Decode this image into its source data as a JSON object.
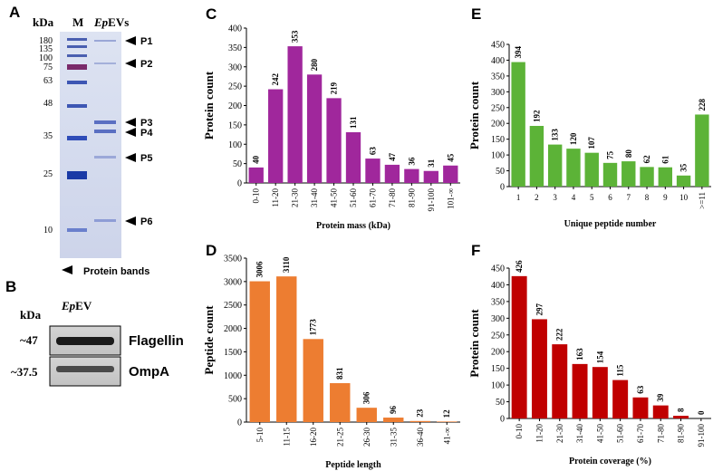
{
  "panels": {
    "A": {
      "letter": "A",
      "kda_label": "kDa",
      "marker_label": "M",
      "sample_label_italic": "Ep",
      "sample_label_rest": "EVs",
      "marker_ticks": [
        "180",
        "135",
        "100",
        "75",
        "63",
        "48",
        "35",
        "25",
        "10"
      ],
      "band_labels": [
        "P1",
        "P2",
        "P3",
        "P4",
        "P5",
        "P6"
      ],
      "legend_text": "Protein bands"
    },
    "B": {
      "letter": "B",
      "kda_label": "kDa",
      "sample_label_italic": "Ep",
      "sample_label_rest": "EV",
      "rows": [
        {
          "kda": "~47",
          "protein": "Flagellin"
        },
        {
          "kda": "~37.5",
          "protein": "OmpA"
        }
      ]
    }
  },
  "chart_data": [
    {
      "id": "C",
      "letter": "C",
      "type": "bar",
      "color": "#a0279c",
      "categories": [
        "0-10",
        "11-20",
        "21-30",
        "31-40",
        "41-50",
        "51-60",
        "61-70",
        "71-80",
        "81-90",
        "91-100",
        "101-∞"
      ],
      "values": [
        40,
        242,
        353,
        280,
        219,
        131,
        63,
        47,
        36,
        31,
        45
      ],
      "xlabel": "Protein mass (kDa)",
      "ylabel": "Protein count",
      "ylim": [
        0,
        400
      ],
      "yticks": [
        0,
        50,
        100,
        150,
        200,
        250,
        300,
        350,
        400
      ],
      "xtick_rotation": "vertical"
    },
    {
      "id": "D",
      "letter": "D",
      "type": "bar",
      "color": "#ed7d31",
      "categories": [
        "5-10",
        "11-15",
        "16-20",
        "21-25",
        "26-30",
        "31-35",
        "36-40",
        "41-∞"
      ],
      "values": [
        3006,
        3110,
        1773,
        831,
        306,
        96,
        23,
        12
      ],
      "xlabel": "Peptide length",
      "ylabel": "Peptide count",
      "ylim": [
        0,
        3500
      ],
      "yticks": [
        0,
        500,
        1000,
        1500,
        2000,
        2500,
        3000,
        3500
      ],
      "xtick_rotation": "vertical"
    },
    {
      "id": "E",
      "letter": "E",
      "type": "bar",
      "color": "#5cb337",
      "categories": [
        "1",
        "2",
        "3",
        "4",
        "5",
        "6",
        "7",
        "8",
        "9",
        "10",
        ">=11"
      ],
      "values": [
        394,
        192,
        133,
        120,
        107,
        75,
        80,
        62,
        61,
        35,
        228
      ],
      "xlabel": "Unique  peptide number",
      "ylabel": "Protein count",
      "ylim": [
        0,
        450
      ],
      "yticks": [
        0,
        50,
        100,
        150,
        200,
        250,
        300,
        350,
        400,
        450
      ],
      "xtick_rotation": "horizontal"
    },
    {
      "id": "F",
      "letter": "F",
      "type": "bar",
      "color": "#c00000",
      "categories": [
        "0-10",
        "11-20",
        "21-30",
        "31-40",
        "41-50",
        "51-60",
        "61-70",
        "71-80",
        "81-90",
        "91-100"
      ],
      "values": [
        426,
        297,
        222,
        163,
        154,
        115,
        63,
        39,
        8,
        0
      ],
      "xlabel": "Protein coverage (%)",
      "ylabel": "Protein count",
      "ylim": [
        0,
        450
      ],
      "yticks": [
        0,
        50,
        100,
        150,
        200,
        250,
        300,
        350,
        400,
        450
      ],
      "xtick_rotation": "vertical"
    }
  ]
}
